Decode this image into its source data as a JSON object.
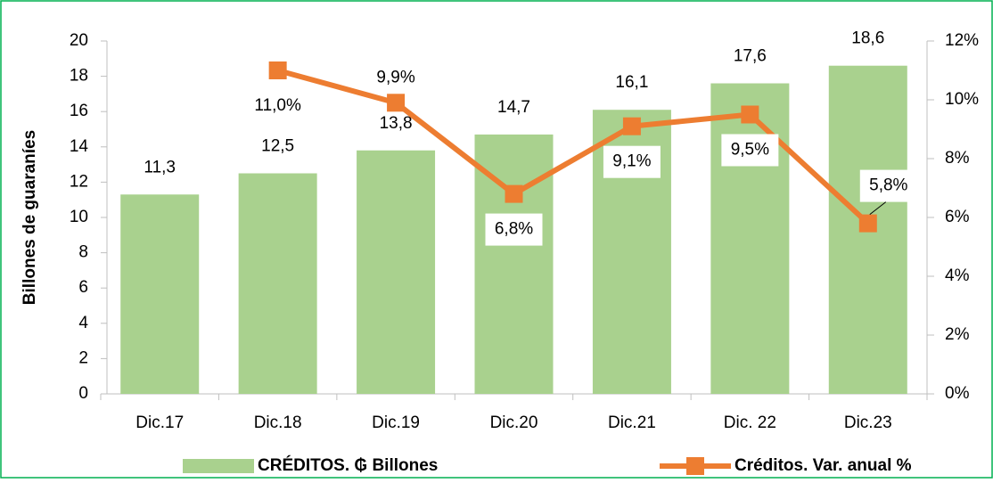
{
  "chart_data": {
    "type": "bar_line",
    "y_label": "Billones de guaraníes",
    "categories": [
      "Dic.17",
      "Dic.18",
      "Dic.19",
      "Dic.20",
      "Dic.21",
      "Dic. 22",
      "Dic.23"
    ],
    "series": [
      {
        "name": "CRÉDITOS. ₲ Billones",
        "type": "bar",
        "color": "#a9d18e",
        "values": [
          11.3,
          12.5,
          13.8,
          14.7,
          16.1,
          17.6,
          18.6
        ],
        "value_labels": [
          "11,3",
          "12,5",
          "13,8",
          "14,7",
          "16,1",
          "17,6",
          "18,6"
        ]
      },
      {
        "name": "Créditos. Var. anual %",
        "type": "line",
        "axis": "y2",
        "color": "#ed7d31",
        "values": [
          null,
          11.0,
          9.9,
          6.8,
          9.1,
          9.5,
          5.8
        ],
        "value_labels": [
          null,
          "11,0%",
          "9,9%",
          "6,8%",
          "9,1%",
          "9,5%",
          "5,8%"
        ]
      }
    ],
    "ylim": [
      0,
      20
    ],
    "yticks": [
      0,
      2,
      4,
      6,
      8,
      10,
      12,
      14,
      16,
      18,
      20
    ],
    "y2lim": [
      0,
      12
    ],
    "y2ticks": [
      {
        "value": 0,
        "label": "0%"
      },
      {
        "value": 2,
        "label": "2%"
      },
      {
        "value": 4,
        "label": "4%"
      },
      {
        "value": 6,
        "label": "6%"
      },
      {
        "value": 8,
        "label": "8%"
      },
      {
        "value": 10,
        "label": "10%"
      },
      {
        "value": 12,
        "label": "12%"
      }
    ],
    "legend": "bottom"
  }
}
